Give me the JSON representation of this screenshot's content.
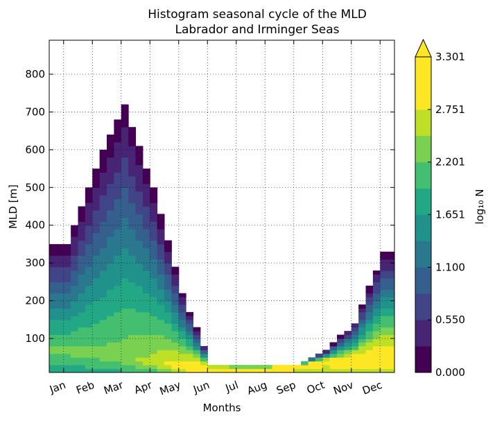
{
  "chart_data": {
    "type": "heatmap",
    "title_line1": "Histogram seasonal cycle of the MLD",
    "title_line2": "Labrador and Irminger Seas",
    "xlabel": "Months",
    "ylabel": "MLD [m]",
    "x_categories": [
      "Jan",
      "Feb",
      "Mar",
      "Apr",
      "May",
      "Jun",
      "Jul",
      "Aug",
      "Sep",
      "Oct",
      "Nov",
      "Dec"
    ],
    "y_ticks": [
      100,
      200,
      300,
      400,
      500,
      600,
      700,
      800
    ],
    "ylim": [
      10,
      890
    ],
    "grid": true,
    "colorbar": {
      "label": "log₁₀ N",
      "min": 0.0,
      "max": 3.301,
      "tick_values": [
        0.0,
        0.55,
        1.1,
        1.651,
        2.201,
        2.751,
        3.301
      ],
      "tick_labels": [
        "0.000",
        "0.550",
        "1.100",
        "1.651",
        "2.201",
        "2.751",
        "3.301"
      ],
      "levels": 12,
      "extend": "max",
      "colormap": "viridis",
      "colors": [
        "#440154",
        "#482475",
        "#414487",
        "#355f8d",
        "#2a788e",
        "#21918c",
        "#22a884",
        "#44bf70",
        "#7ad151",
        "#bddf26",
        "#fde725",
        "#fde725"
      ]
    },
    "profile": {
      "months": [
        0,
        1,
        2,
        3,
        4,
        5,
        6,
        7,
        8,
        9,
        10,
        11
      ],
      "max_mld": [
        350,
        560,
        730,
        500,
        220,
        28,
        25,
        25,
        30,
        65,
        140,
        330
      ],
      "mode_depth": [
        60,
        50,
        40,
        30,
        22,
        18,
        18,
        18,
        22,
        35,
        40,
        45
      ],
      "peak_log_n": [
        2.3,
        2.3,
        2.4,
        2.6,
        3.0,
        3.3,
        3.3,
        3.3,
        3.0,
        3.0,
        3.1,
        3.1
      ]
    }
  }
}
